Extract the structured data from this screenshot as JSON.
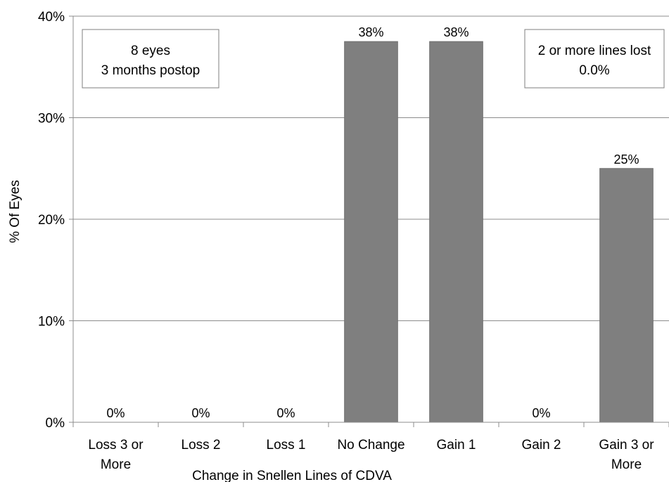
{
  "chart_data": {
    "type": "bar",
    "categories": [
      [
        "Loss 3 or",
        "More"
      ],
      [
        "Loss 2"
      ],
      [
        "Loss 1"
      ],
      [
        "No Change"
      ],
      [
        "Gain 1"
      ],
      [
        "Gain 2"
      ],
      [
        "Gain 3 or",
        "More"
      ]
    ],
    "values": [
      0,
      0,
      0,
      37.5,
      37.5,
      0,
      25
    ],
    "data_labels": [
      "0%",
      "0%",
      "0%",
      "38%",
      "38%",
      "0%",
      "25%"
    ],
    "title": "",
    "xlabel": "Change in Snellen Lines of CDVA",
    "ylabel": "% Of Eyes",
    "ylim": [
      0,
      40
    ],
    "yticks": [
      0,
      10,
      20,
      30,
      40
    ],
    "ytick_labels": [
      "0%",
      "10%",
      "20%",
      "30%",
      "40%"
    ],
    "grid": true,
    "bar_color": "#7f7f7f",
    "annotations": [
      {
        "position": "top-left",
        "lines": [
          "8 eyes",
          "3 months postop"
        ]
      },
      {
        "position": "top-right",
        "lines": [
          "2 or more lines lost",
          "0.0%"
        ]
      }
    ]
  }
}
